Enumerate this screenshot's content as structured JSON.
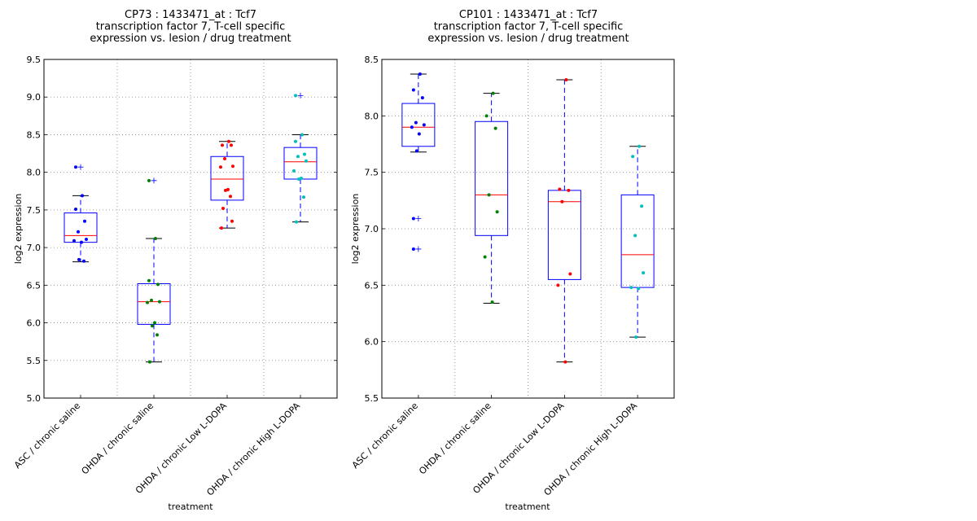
{
  "chart_data": [
    {
      "type": "box",
      "title_lines": [
        "CP73 : 1433471_at : Tcf7",
        "transcription factor 7, T-cell specific",
        "expression vs. lesion / drug treatment"
      ],
      "xlabel": "treatment",
      "ylabel": "log2 expression",
      "ylim": [
        5.0,
        9.5
      ],
      "yticks": [
        "5.0",
        "5.5",
        "6.0",
        "6.5",
        "7.0",
        "7.5",
        "8.0",
        "8.5",
        "9.0",
        "9.5"
      ],
      "grid": true,
      "categories": [
        "ASC / chronic saline",
        "OHDA / chronic saline",
        "OHDA / chronic Low L-DOPA",
        "OHDA / chronic High L-DOPA"
      ],
      "groups": [
        {
          "color": "#0000ff",
          "whisker_low": 6.81,
          "q1": 7.07,
          "median": 7.16,
          "q3": 7.46,
          "whisker_high": 7.69,
          "points": [
            7.69,
            7.51,
            7.35,
            7.21,
            7.11,
            7.09,
            7.07,
            6.84,
            6.82
          ],
          "outliers": [
            8.07
          ]
        },
        {
          "color": "#008000",
          "whisker_low": 5.48,
          "q1": 5.98,
          "median": 6.28,
          "q3": 6.52,
          "whisker_high": 7.12,
          "points": [
            7.12,
            6.56,
            6.51,
            6.3,
            6.28,
            6.27,
            6.0,
            5.96,
            5.84,
            5.48
          ],
          "outliers": [
            7.89
          ]
        },
        {
          "color": "#ff0000",
          "whisker_low": 7.26,
          "q1": 7.63,
          "median": 7.91,
          "q3": 8.21,
          "whisker_high": 8.41,
          "points": [
            8.41,
            8.36,
            8.36,
            8.18,
            8.08,
            8.07,
            7.77,
            7.76,
            7.68,
            7.52,
            7.35,
            7.26
          ],
          "outliers": []
        },
        {
          "color": "#00bfbf",
          "whisker_low": 7.34,
          "q1": 7.91,
          "median": 8.14,
          "q3": 8.33,
          "whisker_high": 8.5,
          "points": [
            8.5,
            8.41,
            8.24,
            8.21,
            8.15,
            8.02,
            7.92,
            7.91,
            7.67,
            7.34
          ],
          "outliers": [
            9.02
          ]
        }
      ]
    },
    {
      "type": "box",
      "title_lines": [
        "CP101 : 1433471_at : Tcf7",
        "transcription factor 7, T-cell specific",
        "expression vs. lesion / drug treatment"
      ],
      "xlabel": "treatment",
      "ylabel": "log2 expression",
      "ylim": [
        5.5,
        8.5
      ],
      "yticks": [
        "5.5",
        "6.0",
        "6.5",
        "7.0",
        "7.5",
        "8.0",
        "8.5"
      ],
      "grid": true,
      "categories": [
        "ASC / chronic saline",
        "OHDA / chronic saline",
        "OHDA / chronic Low L-DOPA",
        "OHDA / chronic High L-DOPA"
      ],
      "groups": [
        {
          "color": "#0000ff",
          "whisker_low": 7.68,
          "q1": 7.73,
          "median": 7.9,
          "q3": 8.11,
          "whisker_high": 8.37,
          "points": [
            8.37,
            8.23,
            8.16,
            7.94,
            7.92,
            7.9,
            7.84,
            7.69
          ],
          "outliers": [
            7.09,
            6.82
          ]
        },
        {
          "color": "#008000",
          "whisker_low": 6.34,
          "q1": 6.94,
          "median": 7.3,
          "q3": 7.95,
          "whisker_high": 8.2,
          "points": [
            8.2,
            8.0,
            7.89,
            7.3,
            7.15,
            6.75,
            6.35
          ],
          "outliers": []
        },
        {
          "color": "#ff0000",
          "whisker_low": 5.82,
          "q1": 6.55,
          "median": 7.24,
          "q3": 7.34,
          "whisker_high": 8.32,
          "points": [
            8.32,
            7.35,
            7.34,
            7.24,
            6.6,
            6.5,
            5.82
          ],
          "outliers": []
        },
        {
          "color": "#00bfbf",
          "whisker_low": 6.04,
          "q1": 6.48,
          "median": 6.77,
          "q3": 7.3,
          "whisker_high": 7.73,
          "points": [
            7.73,
            7.64,
            7.2,
            6.94,
            6.61,
            6.48,
            6.47,
            6.04
          ],
          "outliers": []
        }
      ]
    }
  ]
}
